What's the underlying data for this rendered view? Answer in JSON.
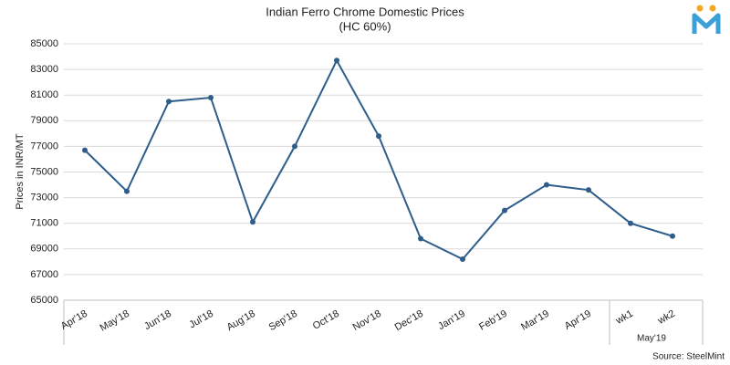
{
  "chart_data": {
    "type": "line",
    "title": "Indian Ferro Chrome Domestic Prices",
    "subtitle": "(HC 60%)",
    "y_label": "Prices in INR/MT",
    "source": "Source: SteelMint",
    "x_group_label": "May'19",
    "categories": [
      "Apr'18",
      "May'18",
      "Jun'18",
      "Jul'18",
      "Aug'18",
      "Sep'18",
      "Oct'18",
      "Nov'18",
      "Dec'18",
      "Jan'19",
      "Feb'19",
      "Mar'19",
      "Apr'19",
      "wk1",
      "wk2"
    ],
    "series": [
      {
        "name": "Prices",
        "color": "#2e5d8a",
        "values": [
          76700,
          73500,
          80500,
          80800,
          71100,
          77000,
          83700,
          77800,
          69800,
          68200,
          72000,
          74000,
          73600,
          71000,
          70000
        ]
      }
    ],
    "ylim": [
      65000,
      85000
    ],
    "yticks": [
      65000,
      67000,
      69000,
      71000,
      73000,
      75000,
      77000,
      79000,
      81000,
      83000,
      85000
    ],
    "grid": true
  }
}
